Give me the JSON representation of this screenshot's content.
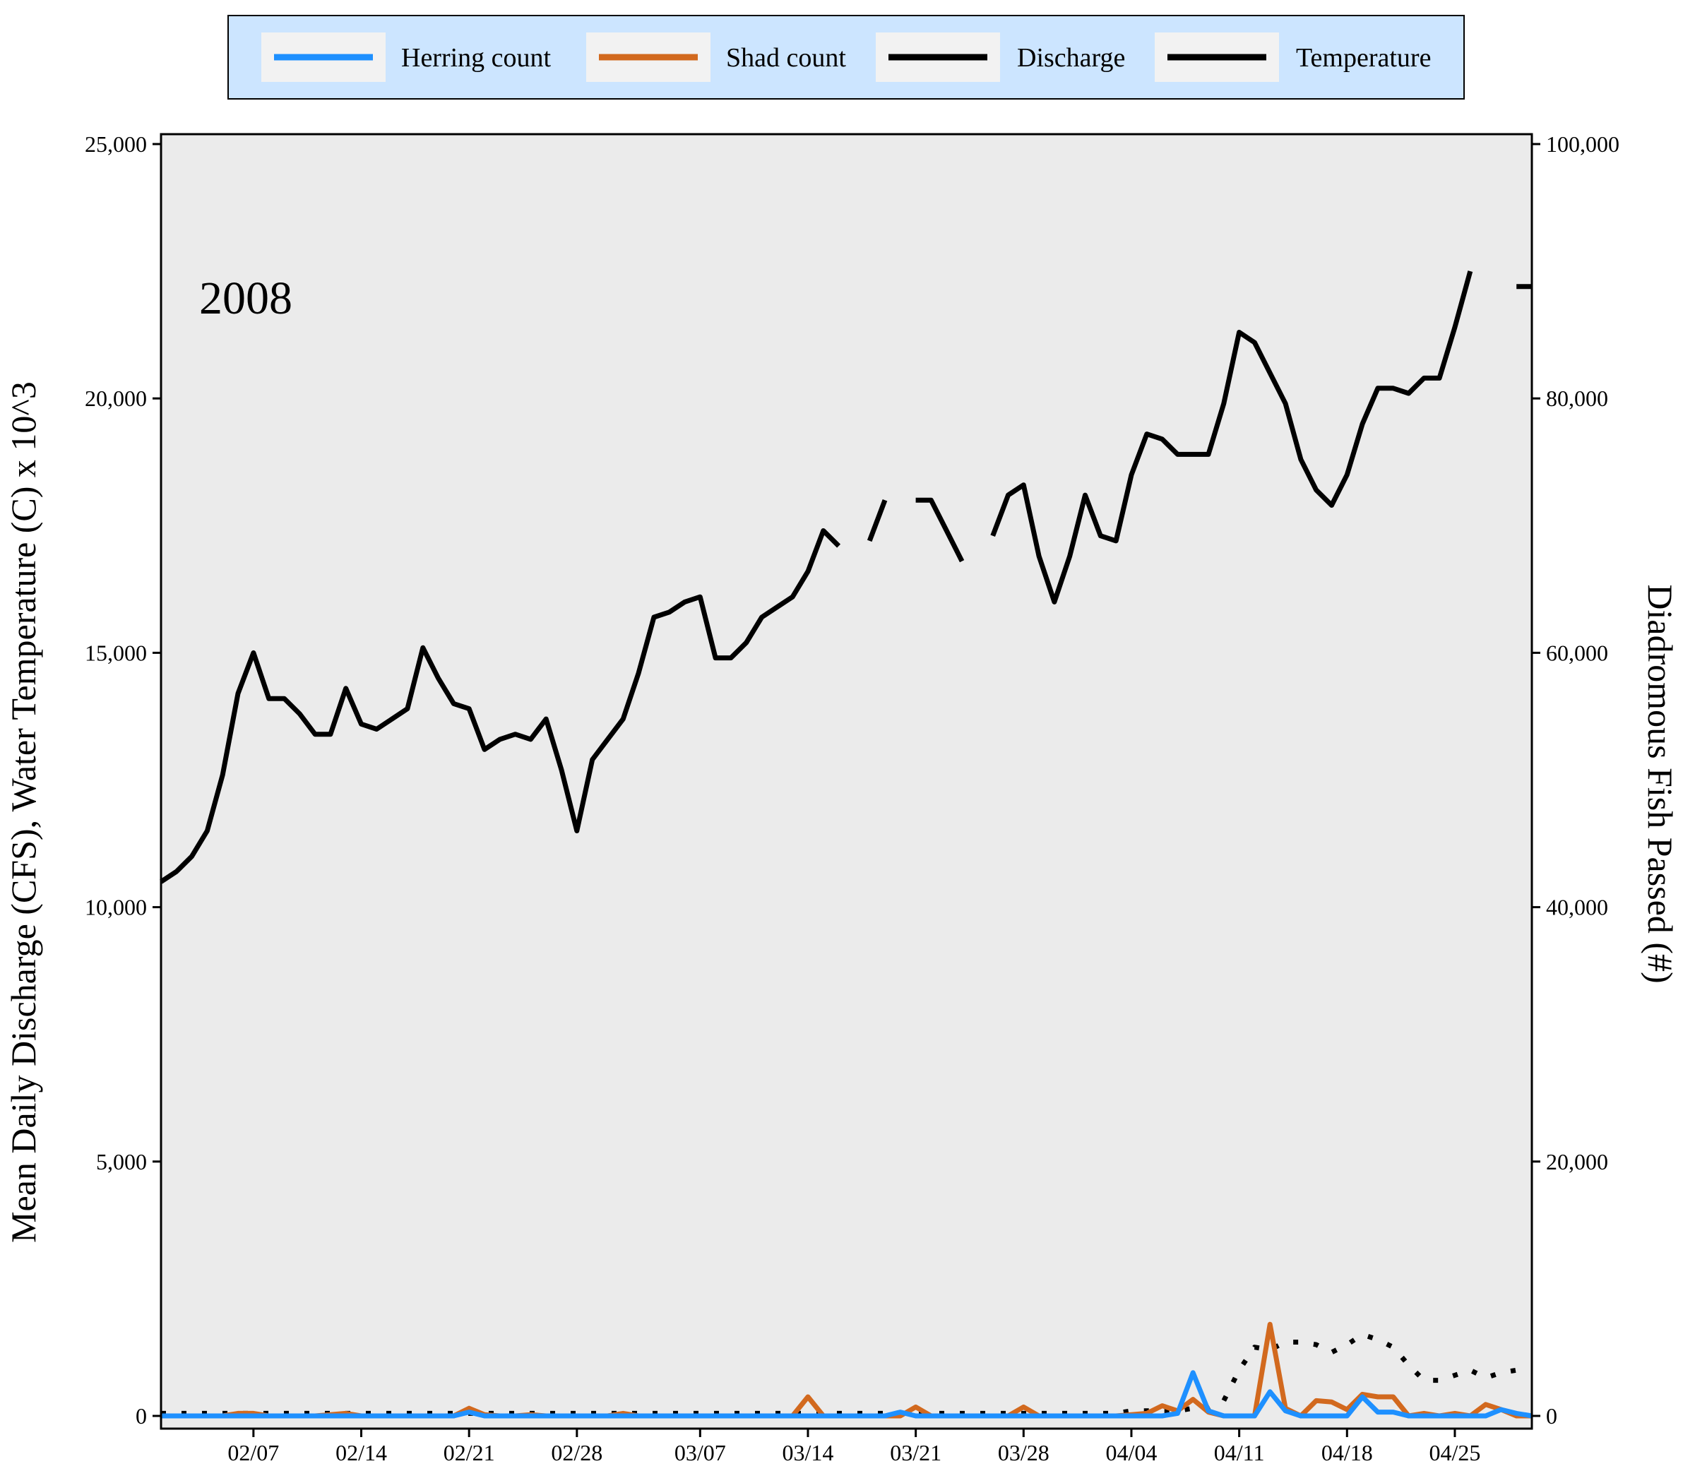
{
  "chart_data": {
    "type": "line",
    "annotation": "2008",
    "ylabel_left": "Mean Daily Discharge (CFS), Water Temperature (C) x 10^3",
    "ylabel_right": "Diadromous Fish Passed (#)",
    "ylim_left": [
      0,
      25000
    ],
    "ylim_right": [
      0,
      100000
    ],
    "left_ticks": [
      "0",
      "5,000",
      "10,000",
      "15,000",
      "20,000",
      "25,000"
    ],
    "right_ticks": [
      "0",
      "20,000",
      "40,000",
      "60,000",
      "80,000",
      "100,000"
    ],
    "x_range": [
      "2008-02-01",
      "2008-04-30"
    ],
    "x_ticks": [
      {
        "date": "2008-02-07",
        "label": "02/07"
      },
      {
        "date": "2008-02-14",
        "label": "02/14"
      },
      {
        "date": "2008-02-21",
        "label": "02/21"
      },
      {
        "date": "2008-02-28",
        "label": "02/28"
      },
      {
        "date": "2008-03-07",
        "label": "03/07"
      },
      {
        "date": "2008-03-14",
        "label": "03/14"
      },
      {
        "date": "2008-03-21",
        "label": "03/21"
      },
      {
        "date": "2008-03-28",
        "label": "03/28"
      },
      {
        "date": "2008-04-04",
        "label": "04/04"
      },
      {
        "date": "2008-04-11",
        "label": "04/11"
      },
      {
        "date": "2008-04-18",
        "label": "04/18"
      },
      {
        "date": "2008-04-25",
        "label": "04/25"
      }
    ],
    "grid": false,
    "legend_position": "top",
    "series": [
      {
        "name": "Herring count",
        "axis": "right",
        "color": "#1e90ff",
        "dash": "solid",
        "x": [
          "2008-02-01",
          "2008-02-02",
          "2008-02-03",
          "2008-02-04",
          "2008-02-05",
          "2008-02-06",
          "2008-02-07",
          "2008-02-08",
          "2008-02-09",
          "2008-02-10",
          "2008-02-11",
          "2008-02-12",
          "2008-02-13",
          "2008-02-14",
          "2008-02-15",
          "2008-02-16",
          "2008-02-17",
          "2008-02-18",
          "2008-02-19",
          "2008-02-20",
          "2008-02-21",
          "2008-02-22",
          "2008-02-23",
          "2008-02-24",
          "2008-02-25",
          "2008-02-26",
          "2008-02-27",
          "2008-02-28",
          "2008-02-29",
          "2008-03-01",
          "2008-03-02",
          "2008-03-03",
          "2008-03-04",
          "2008-03-05",
          "2008-03-06",
          "2008-03-07",
          "2008-03-08",
          "2008-03-09",
          "2008-03-10",
          "2008-03-11",
          "2008-03-12",
          "2008-03-13",
          "2008-03-14",
          "2008-03-15",
          "2008-03-16",
          "2008-03-17",
          "2008-03-18",
          "2008-03-19",
          "2008-03-20",
          "2008-03-21",
          "2008-03-22",
          "2008-03-23",
          "2008-03-24",
          "2008-03-25",
          "2008-03-26",
          "2008-03-27",
          "2008-03-28",
          "2008-03-29",
          "2008-03-30",
          "2008-03-31",
          "2008-04-01",
          "2008-04-02",
          "2008-04-03",
          "2008-04-04",
          "2008-04-05",
          "2008-04-06",
          "2008-04-07",
          "2008-04-08",
          "2008-04-09",
          "2008-04-10",
          "2008-04-11",
          "2008-04-12",
          "2008-04-13",
          "2008-04-14",
          "2008-04-15",
          "2008-04-16",
          "2008-04-17",
          "2008-04-18",
          "2008-04-19",
          "2008-04-20",
          "2008-04-21",
          "2008-04-22",
          "2008-04-23",
          "2008-04-24",
          "2008-04-25",
          "2008-04-26",
          "2008-04-27",
          "2008-04-28",
          "2008-04-29",
          "2008-04-30"
        ],
        "y": [
          0,
          0,
          0,
          0,
          0,
          0,
          0,
          0,
          0,
          0,
          0,
          0,
          0,
          0,
          0,
          0,
          0,
          0,
          0,
          0,
          300,
          0,
          0,
          0,
          0,
          0,
          0,
          0,
          0,
          0,
          0,
          0,
          0,
          0,
          0,
          0,
          0,
          0,
          0,
          0,
          0,
          0,
          0,
          0,
          0,
          0,
          0,
          0,
          300,
          0,
          0,
          0,
          0,
          0,
          0,
          0,
          0,
          0,
          0,
          0,
          0,
          0,
          0,
          0,
          0,
          0,
          200,
          3400,
          400,
          0,
          0,
          0,
          1900,
          400,
          0,
          0,
          0,
          0,
          1500,
          300,
          300,
          0,
          0,
          0,
          0,
          0,
          0,
          500,
          200,
          0
        ]
      },
      {
        "name": "Shad count",
        "axis": "right",
        "color": "#d2691e",
        "dash": "solid",
        "x": [
          "2008-02-01",
          "2008-02-02",
          "2008-02-03",
          "2008-02-04",
          "2008-02-05",
          "2008-02-06",
          "2008-02-07",
          "2008-02-08",
          "2008-02-09",
          "2008-02-10",
          "2008-02-11",
          "2008-02-12",
          "2008-02-13",
          "2008-02-14",
          "2008-02-15",
          "2008-02-16",
          "2008-02-17",
          "2008-02-18",
          "2008-02-19",
          "2008-02-20",
          "2008-02-21",
          "2008-02-22",
          "2008-02-23",
          "2008-02-24",
          "2008-02-25",
          "2008-02-26",
          "2008-02-27",
          "2008-02-28",
          "2008-02-29",
          "2008-03-01",
          "2008-03-02",
          "2008-03-03",
          "2008-03-04",
          "2008-03-05",
          "2008-03-06",
          "2008-03-07",
          "2008-03-08",
          "2008-03-09",
          "2008-03-10",
          "2008-03-11",
          "2008-03-12",
          "2008-03-13",
          "2008-03-14",
          "2008-03-15",
          "2008-03-16",
          "2008-03-17",
          "2008-03-18",
          "2008-03-19",
          "2008-03-20",
          "2008-03-21",
          "2008-03-22",
          "2008-03-23",
          "2008-03-24",
          "2008-03-25",
          "2008-03-26",
          "2008-03-27",
          "2008-03-28",
          "2008-03-29",
          "2008-03-30",
          "2008-03-31",
          "2008-04-01",
          "2008-04-02",
          "2008-04-03",
          "2008-04-04",
          "2008-04-05",
          "2008-04-06",
          "2008-04-07",
          "2008-04-08",
          "2008-04-09",
          "2008-04-10",
          "2008-04-11",
          "2008-04-12",
          "2008-04-13",
          "2008-04-14",
          "2008-04-15",
          "2008-04-16",
          "2008-04-17",
          "2008-04-18",
          "2008-04-19",
          "2008-04-20",
          "2008-04-21",
          "2008-04-22",
          "2008-04-23",
          "2008-04-24",
          "2008-04-25",
          "2008-04-26",
          "2008-04-27",
          "2008-04-28",
          "2008-04-29",
          "2008-04-30"
        ],
        "y": [
          0,
          0,
          0,
          0,
          0,
          200,
          200,
          0,
          0,
          0,
          0,
          100,
          200,
          0,
          0,
          0,
          0,
          0,
          0,
          0,
          600,
          100,
          0,
          0,
          100,
          0,
          0,
          0,
          0,
          0,
          200,
          0,
          0,
          0,
          0,
          0,
          0,
          0,
          0,
          0,
          0,
          0,
          1500,
          0,
          0,
          0,
          0,
          0,
          0,
          700,
          0,
          0,
          0,
          0,
          0,
          0,
          700,
          0,
          0,
          0,
          0,
          0,
          0,
          100,
          200,
          800,
          400,
          1300,
          300,
          0,
          0,
          0,
          7200,
          600,
          0,
          1200,
          1100,
          500,
          1700,
          1500,
          1500,
          0,
          200,
          0,
          200,
          0,
          900,
          500,
          0,
          0
        ]
      },
      {
        "name": "Discharge",
        "axis": "left",
        "color": "#000000",
        "dash": "dotted",
        "x": [
          "2008-02-01",
          "2008-02-02",
          "2008-02-03",
          "2008-02-04",
          "2008-02-05",
          "2008-02-06",
          "2008-02-07",
          "2008-02-08",
          "2008-02-09",
          "2008-02-10",
          "2008-02-11",
          "2008-02-12",
          "2008-02-13",
          "2008-02-14",
          "2008-02-15",
          "2008-02-16",
          "2008-02-17",
          "2008-02-18",
          "2008-02-19",
          "2008-02-20",
          "2008-02-21",
          "2008-02-22",
          "2008-02-23",
          "2008-02-24",
          "2008-02-25",
          "2008-02-26",
          "2008-02-27",
          "2008-02-28",
          "2008-02-29",
          "2008-03-01",
          "2008-03-02",
          "2008-03-03",
          "2008-03-04",
          "2008-03-05",
          "2008-03-06",
          "2008-03-07",
          "2008-03-08",
          "2008-03-09",
          "2008-03-10",
          "2008-03-11",
          "2008-03-12",
          "2008-03-13",
          "2008-03-14",
          "2008-03-15",
          "2008-03-16",
          "2008-03-17",
          "2008-03-18",
          "2008-03-19",
          "2008-03-20",
          "2008-03-21",
          "2008-03-22",
          "2008-03-23",
          "2008-03-24",
          "2008-03-25",
          "2008-03-26",
          "2008-03-27",
          "2008-03-28",
          "2008-03-29",
          "2008-03-30",
          "2008-03-31",
          "2008-04-01",
          "2008-04-02",
          "2008-04-03",
          "2008-04-04",
          "2008-04-05",
          "2008-04-06",
          "2008-04-07",
          "2008-04-08",
          "2008-04-09",
          "2008-04-10",
          "2008-04-11",
          "2008-04-12",
          "2008-04-13",
          "2008-04-14",
          "2008-04-15",
          "2008-04-16",
          "2008-04-17",
          "2008-04-18",
          "2008-04-19",
          "2008-04-20",
          "2008-04-21",
          "2008-04-22",
          "2008-04-23",
          "2008-04-24",
          "2008-04-25",
          "2008-04-26",
          "2008-04-27",
          "2008-04-28",
          "2008-04-29",
          "2008-04-30"
        ],
        "y": [
          50,
          50,
          50,
          50,
          50,
          50,
          50,
          50,
          50,
          50,
          50,
          50,
          50,
          50,
          50,
          50,
          50,
          50,
          50,
          50,
          50,
          50,
          50,
          50,
          50,
          50,
          50,
          50,
          50,
          50,
          50,
          50,
          50,
          50,
          50,
          50,
          50,
          50,
          50,
          50,
          50,
          50,
          50,
          50,
          50,
          50,
          50,
          50,
          50,
          50,
          50,
          50,
          50,
          50,
          50,
          50,
          50,
          50,
          50,
          50,
          50,
          50,
          50,
          100,
          100,
          100,
          100,
          150,
          150,
          300,
          900,
          1350,
          1300,
          1450,
          1450,
          1400,
          1250,
          1400,
          1600,
          1500,
          1350,
          1000,
          700,
          700,
          800,
          900,
          750,
          850,
          900,
          900
        ]
      },
      {
        "name": "Temperature",
        "axis": "left",
        "color": "#000000",
        "dash": "solid",
        "x": [
          "2008-02-01",
          "2008-02-02",
          "2008-02-03",
          "2008-02-04",
          "2008-02-05",
          "2008-02-06",
          "2008-02-07",
          "2008-02-08",
          "2008-02-09",
          "2008-02-10",
          "2008-02-11",
          "2008-02-12",
          "2008-02-13",
          "2008-02-14",
          "2008-02-15",
          "2008-02-16",
          "2008-02-17",
          "2008-02-18",
          "2008-02-19",
          "2008-02-20",
          "2008-02-21",
          "2008-02-22",
          "2008-02-23",
          "2008-02-24",
          "2008-02-25",
          "2008-02-26",
          "2008-02-27",
          "2008-02-28",
          "2008-02-29",
          "2008-03-01",
          "2008-03-02",
          "2008-03-03",
          "2008-03-04",
          "2008-03-05",
          "2008-03-06",
          "2008-03-07",
          "2008-03-08",
          "2008-03-09",
          "2008-03-10",
          "2008-03-11",
          "2008-03-12",
          "2008-03-13",
          "2008-03-14",
          "2008-03-15",
          "2008-03-16",
          "2008-03-17",
          "2008-03-18",
          "2008-03-19",
          "2008-03-20",
          "2008-03-21",
          "2008-03-22",
          "2008-03-23",
          "2008-03-24",
          "2008-03-25",
          "2008-03-26",
          "2008-03-27",
          "2008-03-28",
          "2008-03-29",
          "2008-03-30",
          "2008-03-31",
          "2008-04-01",
          "2008-04-02",
          "2008-04-03",
          "2008-04-04",
          "2008-04-05",
          "2008-04-06",
          "2008-04-07",
          "2008-04-08",
          "2008-04-09",
          "2008-04-10",
          "2008-04-11",
          "2008-04-12",
          "2008-04-13",
          "2008-04-14",
          "2008-04-15",
          "2008-04-16",
          "2008-04-17",
          "2008-04-18",
          "2008-04-19",
          "2008-04-20",
          "2008-04-21",
          "2008-04-22",
          "2008-04-23",
          "2008-04-24",
          "2008-04-25",
          "2008-04-26",
          "2008-04-27",
          "2008-04-28",
          "2008-04-29",
          "2008-04-30"
        ],
        "y": [
          10500,
          10700,
          11000,
          11500,
          12600,
          14200,
          15000,
          14100,
          14100,
          13800,
          13400,
          13400,
          14300,
          13600,
          13500,
          13700,
          13900,
          15100,
          14500,
          14000,
          13900,
          13100,
          13300,
          13400,
          13300,
          13700,
          12700,
          11500,
          12900,
          13300,
          13700,
          14600,
          15700,
          15800,
          16000,
          16100,
          14900,
          14900,
          15200,
          15700,
          15900,
          16100,
          16600,
          17400,
          17100,
          null,
          17200,
          18000,
          null,
          18000,
          18000,
          17400,
          16800,
          null,
          17300,
          18100,
          18300,
          16900,
          16000,
          16900,
          18100,
          17300,
          17200,
          18500,
          19300,
          19200,
          18900,
          18900,
          18900,
          19900,
          21300,
          21100,
          20500,
          19900,
          18800,
          18200,
          17900,
          18500,
          19500,
          20200,
          20200,
          20100,
          20400,
          20400,
          21400,
          22500,
          null,
          null,
          22200,
          22200
        ]
      }
    ]
  }
}
